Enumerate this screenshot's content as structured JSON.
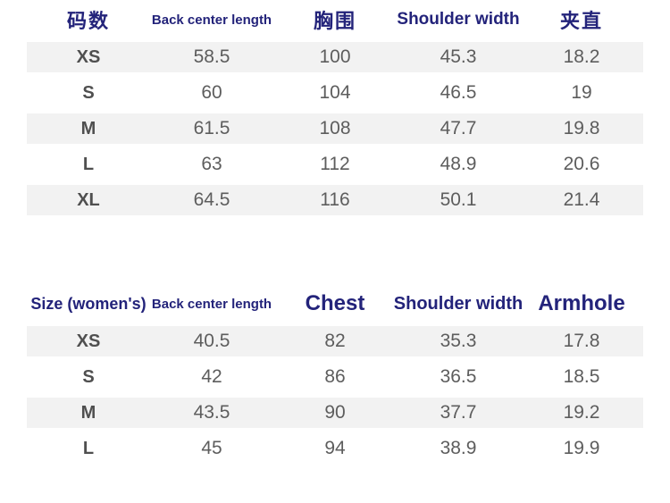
{
  "colors": {
    "header_text": "#23237a",
    "size_label_text": "#4f4f4f",
    "value_text": "#5d5d5d",
    "row_stripe": "#f2f2f2",
    "background": "#ffffff"
  },
  "chart_data": [
    {
      "type": "table",
      "title": "",
      "columns": [
        "码数",
        "Back center length",
        "胸围",
        "Shoulder width",
        "夹直"
      ],
      "rows": [
        [
          "XS",
          "58.5",
          "100",
          "45.3",
          "18.2"
        ],
        [
          "S",
          "60",
          "104",
          "46.5",
          "19"
        ],
        [
          "M",
          "61.5",
          "108",
          "47.7",
          "19.8"
        ],
        [
          "L",
          "63",
          "112",
          "48.9",
          "20.6"
        ],
        [
          "XL",
          "64.5",
          "116",
          "50.1",
          "21.4"
        ]
      ],
      "layout": {
        "striped_rows": "odd (XS, M, XL)",
        "gridlines": false
      }
    },
    {
      "type": "table",
      "title": "",
      "columns": [
        "Size (women's)",
        "Back center length",
        "Chest",
        "Shoulder width",
        "Armhole"
      ],
      "rows": [
        [
          "XS",
          "40.5",
          "82",
          "35.3",
          "17.8"
        ],
        [
          "S",
          "42",
          "86",
          "36.5",
          "18.5"
        ],
        [
          "M",
          "43.5",
          "90",
          "37.7",
          "19.2"
        ],
        [
          "L",
          "45",
          "94",
          "38.9",
          "19.9"
        ]
      ],
      "layout": {
        "striped_rows": "odd (XS, M)",
        "gridlines": false
      }
    }
  ]
}
